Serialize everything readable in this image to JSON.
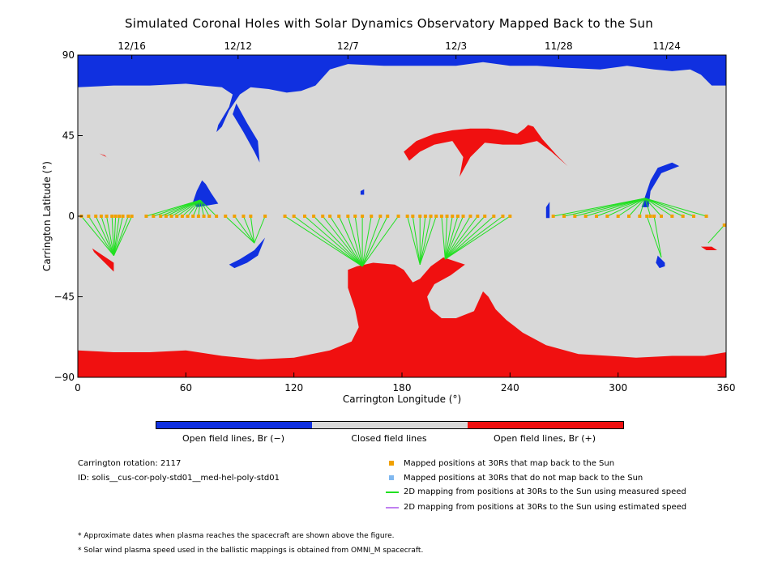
{
  "title": "Simulated Coronal Holes with Solar Dynamics Observatory Mapped Back to the Sun",
  "colors": {
    "open_negative": "#1030e0",
    "closed": "#d8d8d8",
    "open_positive": "#f01010",
    "mapped_ok": "#f0a000",
    "mapped_no": "#80b8f0",
    "measured_line": "#20e020",
    "estimated_line": "#c080f0"
  },
  "chart_data": {
    "type": "scatter",
    "xlabel": "Carrington Longitude (°)",
    "ylabel": "Carrington Latitude (°)",
    "xlim": [
      0,
      360
    ],
    "ylim": [
      -90,
      90
    ],
    "xticks": [
      0,
      60,
      120,
      180,
      240,
      300,
      360
    ],
    "yticks": [
      -90,
      -45,
      0,
      45,
      90
    ],
    "top_axis_dates": [
      {
        "label": "12/16",
        "lon": 30
      },
      {
        "label": "12/12",
        "lon": 89
      },
      {
        "label": "12/7",
        "lon": 150
      },
      {
        "label": "12/3",
        "lon": 210
      },
      {
        "label": "11/28",
        "lon": 267
      },
      {
        "label": "11/24",
        "lon": 327
      }
    ],
    "mapped_groups": [
      {
        "target": [
          20,
          -22
        ],
        "points": [
          [
            2,
            0
          ],
          [
            6,
            0
          ],
          [
            10,
            0
          ],
          [
            13,
            0
          ],
          [
            16,
            0
          ],
          [
            19,
            0
          ],
          [
            21,
            0
          ],
          [
            23,
            0
          ],
          [
            25,
            0
          ],
          [
            28,
            0
          ],
          [
            30,
            0
          ]
        ]
      },
      {
        "target": [
          68,
          9
        ],
        "points": [
          [
            38,
            0
          ],
          [
            42,
            0
          ],
          [
            46,
            0
          ],
          [
            49,
            0
          ],
          [
            52,
            0
          ],
          [
            55,
            0
          ],
          [
            58,
            0
          ],
          [
            61,
            0
          ],
          [
            64,
            0
          ],
          [
            67,
            0
          ],
          [
            70,
            0
          ],
          [
            73,
            0
          ],
          [
            77,
            0
          ]
        ]
      },
      {
        "target": [
          98,
          -15
        ],
        "points": [
          [
            82,
            0
          ],
          [
            87,
            0
          ],
          [
            92,
            0
          ],
          [
            96,
            0
          ],
          [
            104,
            0
          ]
        ]
      },
      {
        "target": [
          158,
          -28
        ],
        "points": [
          [
            115,
            0
          ],
          [
            120,
            0
          ],
          [
            126,
            0
          ],
          [
            131,
            0
          ],
          [
            136,
            0
          ],
          [
            140,
            0
          ],
          [
            145,
            0
          ],
          [
            150,
            0
          ],
          [
            154,
            0
          ],
          [
            158,
            0
          ],
          [
            163,
            0
          ],
          [
            168,
            0
          ],
          [
            172,
            0
          ],
          [
            178,
            0
          ]
        ]
      },
      {
        "target": [
          190,
          -27
        ],
        "points": [
          [
            183,
            0
          ],
          [
            186,
            0
          ],
          [
            190,
            0
          ],
          [
            193,
            0
          ],
          [
            196,
            0
          ],
          [
            199,
            0
          ]
        ]
      },
      {
        "target": [
          204,
          -24
        ],
        "points": [
          [
            202,
            0
          ],
          [
            205,
            0
          ],
          [
            208,
            0
          ],
          [
            211,
            0
          ],
          [
            214,
            0
          ],
          [
            218,
            0
          ],
          [
            222,
            0
          ],
          [
            226,
            0
          ],
          [
            231,
            0
          ],
          [
            236,
            0
          ],
          [
            240,
            0
          ]
        ]
      },
      {
        "target": [
          315,
          10
        ],
        "points": [
          [
            264,
            0
          ],
          [
            270,
            0
          ],
          [
            276,
            0
          ],
          [
            282,
            0
          ],
          [
            288,
            0
          ],
          [
            294,
            0
          ],
          [
            300,
            0
          ],
          [
            306,
            0
          ],
          [
            312,
            0
          ],
          [
            318,
            0
          ],
          [
            324,
            0
          ],
          [
            330,
            0
          ],
          [
            336,
            0
          ],
          [
            342,
            0
          ],
          [
            349,
            0
          ]
        ]
      },
      {
        "target": [
          324,
          -23
        ],
        "points": [
          [
            316,
            0
          ],
          [
            320,
            0
          ]
        ]
      },
      {
        "target": [
          350,
          -15
        ],
        "points": [
          [
            359,
            -5
          ]
        ]
      }
    ]
  },
  "legend": {
    "colorbar_labels": [
      "Open field lines, Br (−)",
      "Closed field lines",
      "Open field lines, Br (+)"
    ],
    "carrington_rotation": "Carrington rotation: 2117",
    "id_text": "ID: solis__cus-cor-poly-std01__med-hel-poly-std01",
    "items": [
      "Mapped positions at 30Rs that map back to the Sun",
      "Mapped positions at 30Rs that do not map back to the Sun",
      "2D mapping from positions at 30Rs to the Sun using measured speed",
      "2D mapping from positions at 30Rs to the Sun using estimated speed"
    ]
  },
  "notes": [
    "* Approximate dates when plasma reaches the spacecraft are shown above the figure.",
    "* Solar wind plasma speed used in the ballistic mappings is obtained from OMNI_M spacecraft."
  ]
}
